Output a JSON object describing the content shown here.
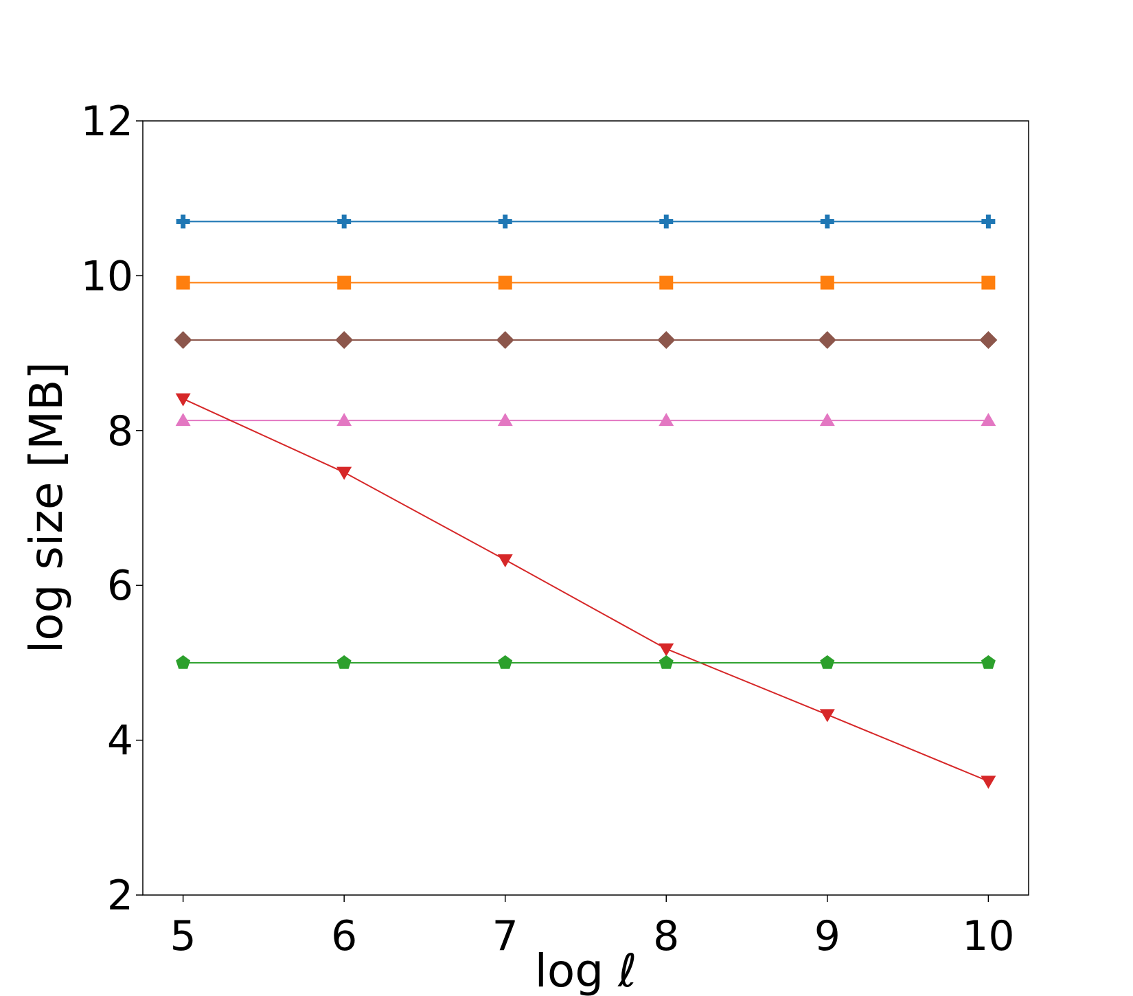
{
  "chart_data": {
    "type": "line",
    "title": "",
    "xlabel": "log ℓ",
    "ylabel": "log size [MB]",
    "x": [
      5,
      6,
      7,
      8,
      9,
      10
    ],
    "xlim": [
      4.75,
      10.25
    ],
    "ylim": [
      2,
      12
    ],
    "xticks": [
      5,
      6,
      7,
      8,
      9,
      10
    ],
    "yticks": [
      2,
      4,
      6,
      8,
      10,
      12
    ],
    "grid": false,
    "series": [
      {
        "color": "#1f77b4",
        "marker": "plus",
        "values": [
          10.7,
          10.7,
          10.7,
          10.7,
          10.7,
          10.7
        ]
      },
      {
        "color": "#ff7f0e",
        "marker": "square",
        "values": [
          9.91,
          9.91,
          9.91,
          9.91,
          9.91,
          9.91
        ]
      },
      {
        "color": "#8c564b",
        "marker": "diamond",
        "values": [
          9.17,
          9.17,
          9.17,
          9.17,
          9.17,
          9.17
        ]
      },
      {
        "color": "#e377c2",
        "marker": "triangle-up",
        "values": [
          8.13,
          8.13,
          8.13,
          8.13,
          8.13,
          8.13
        ]
      },
      {
        "color": "#d62728",
        "marker": "triangle-down",
        "values": [
          8.41,
          7.46,
          6.33,
          5.18,
          4.33,
          3.47
        ]
      },
      {
        "color": "#2ca02c",
        "marker": "pentagon",
        "values": [
          5.0,
          5.0,
          5.0,
          5.0,
          5.0,
          5.0
        ]
      }
    ]
  }
}
